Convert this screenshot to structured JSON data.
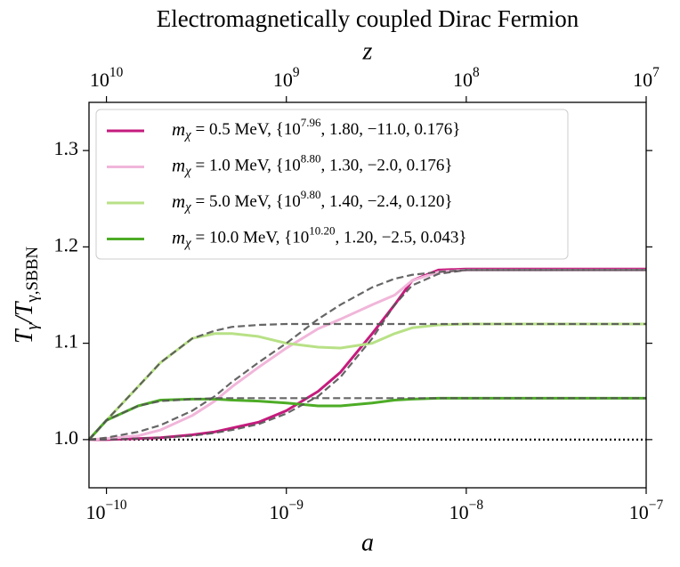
{
  "chart_data": {
    "type": "line",
    "title": "Electromagnetically coupled Dirac Fermion",
    "x_label": "a",
    "y_label": "Tγ/Tγ,SBBN",
    "x2_label": "z",
    "xscale": "log",
    "x2scale": "log",
    "xlim": [
      8e-11,
      1e-07
    ],
    "xticks": [
      {
        "value": 1e-10,
        "label": "10−10"
      },
      {
        "value": 1e-09,
        "label": "10−9"
      },
      {
        "value": 1e-08,
        "label": "10−8"
      },
      {
        "value": 1e-07,
        "label": "10−7"
      }
    ],
    "x2lim": [
      12500000000.0,
      10000000.0
    ],
    "x2ticks": [
      {
        "value": 10000000000.0,
        "label": "1010"
      },
      {
        "value": 1000000000.0,
        "label": "109"
      },
      {
        "value": 100000000.0,
        "label": "108"
      },
      {
        "value": 10000000.0,
        "label": "107"
      }
    ],
    "ylim": [
      0.95,
      1.35
    ],
    "yticks": [
      {
        "value": 1.0,
        "label": "1.0"
      },
      {
        "value": 1.1,
        "label": "1.1"
      },
      {
        "value": 1.2,
        "label": "1.2"
      },
      {
        "value": 1.3,
        "label": "1.3"
      }
    ],
    "hline": 1.0,
    "legend": "upper left",
    "x": [
      8e-11,
      1e-10,
      1.5e-10,
      2e-10,
      3e-10,
      4e-10,
      5e-10,
      7e-10,
      1e-09,
      1.5e-09,
      2e-09,
      3e-09,
      4e-09,
      5e-09,
      7e-09,
      1e-08,
      2e-08,
      5e-08,
      1e-07
    ],
    "series": [
      {
        "name": "mχ = 0.5 MeV,  {107.96, 1.80, −11.0, 0.176}",
        "color": "#c51b7d",
        "values": [
          1.0,
          1.0,
          1.001,
          1.002,
          1.005,
          1.008,
          1.012,
          1.018,
          1.03,
          1.05,
          1.07,
          1.11,
          1.14,
          1.165,
          1.176,
          1.177,
          1.177,
          1.177,
          1.177
        ]
      },
      {
        "name": "mχ = 1.0 MeV,  {108.80, 1.30, −2.0, 0.176}",
        "color": "#f1b6da",
        "values": [
          1.0,
          1.001,
          1.004,
          1.01,
          1.025,
          1.04,
          1.055,
          1.075,
          1.095,
          1.115,
          1.125,
          1.14,
          1.15,
          1.165,
          1.174,
          1.176,
          1.176,
          1.176,
          1.176
        ]
      },
      {
        "name": "mχ = 5.0 MeV,  {109.80, 1.40, −2.4, 0.120}",
        "color": "#b8e186",
        "values": [
          1.0,
          1.02,
          1.055,
          1.08,
          1.105,
          1.11,
          1.11,
          1.107,
          1.1,
          1.096,
          1.095,
          1.1,
          1.11,
          1.116,
          1.119,
          1.12,
          1.12,
          1.12,
          1.12
        ]
      },
      {
        "name": "mχ = 10.0 MeV,  {1010.20, 1.20, −2.5, 0.043}",
        "color": "#4dac26",
        "values": [
          1.0,
          1.02,
          1.035,
          1.041,
          1.042,
          1.042,
          1.041,
          1.04,
          1.038,
          1.035,
          1.035,
          1.038,
          1.041,
          1.042,
          1.043,
          1.043,
          1.043,
          1.043,
          1.043
        ]
      }
    ],
    "fits": [
      {
        "color": "#555555",
        "values": [
          1.0,
          1.0,
          1.001,
          1.002,
          1.004,
          1.007,
          1.01,
          1.016,
          1.027,
          1.045,
          1.065,
          1.105,
          1.14,
          1.16,
          1.172,
          1.176,
          1.176,
          1.176,
          1.176
        ]
      },
      {
        "color": "#555555",
        "values": [
          1.0,
          1.002,
          1.008,
          1.015,
          1.03,
          1.045,
          1.06,
          1.08,
          1.1,
          1.125,
          1.14,
          1.158,
          1.167,
          1.171,
          1.174,
          1.176,
          1.176,
          1.176,
          1.176
        ]
      },
      {
        "color": "#555555",
        "values": [
          1.0,
          1.02,
          1.055,
          1.08,
          1.105,
          1.113,
          1.117,
          1.119,
          1.12,
          1.12,
          1.12,
          1.12,
          1.12,
          1.12,
          1.12,
          1.12,
          1.12,
          1.12,
          1.12
        ]
      },
      {
        "color": "#555555",
        "values": [
          1.0,
          1.02,
          1.035,
          1.04,
          1.042,
          1.043,
          1.043,
          1.043,
          1.043,
          1.043,
          1.043,
          1.043,
          1.043,
          1.043,
          1.043,
          1.043,
          1.043,
          1.043,
          1.043
        ]
      }
    ]
  }
}
